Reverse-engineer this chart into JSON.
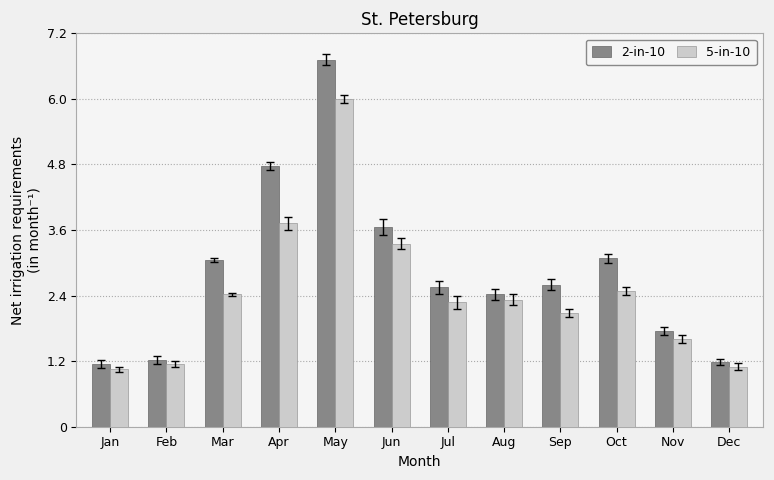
{
  "title": "St. Petersburg",
  "xlabel": "Month",
  "ylabel": "Net irrigation requirements\n(in month⁻¹)",
  "months": [
    "Jan",
    "Feb",
    "Mar",
    "Apr",
    "May",
    "Jun",
    "Jul",
    "Aug",
    "Sep",
    "Oct",
    "Nov",
    "Dec"
  ],
  "values_2in10": [
    1.15,
    1.22,
    3.05,
    4.77,
    6.72,
    3.65,
    2.55,
    2.42,
    2.6,
    3.08,
    1.75,
    1.18
  ],
  "values_5in10": [
    1.05,
    1.15,
    2.42,
    3.72,
    6.0,
    3.35,
    2.28,
    2.32,
    2.08,
    2.48,
    1.6,
    1.1
  ],
  "err_2in10": [
    0.07,
    0.08,
    0.04,
    0.07,
    0.1,
    0.15,
    0.12,
    0.1,
    0.1,
    0.08,
    0.07,
    0.06
  ],
  "err_5in10": [
    0.05,
    0.06,
    0.03,
    0.12,
    0.07,
    0.1,
    0.12,
    0.1,
    0.07,
    0.07,
    0.07,
    0.06
  ],
  "color_2in10": "#888888",
  "color_5in10": "#cccccc",
  "ylim": [
    0,
    7.2
  ],
  "yticks": [
    0,
    1.2,
    2.4,
    3.6,
    4.8,
    6.0,
    7.2
  ],
  "ytick_labels": [
    "0",
    "1.2",
    "2.4",
    "3.6",
    "4.8",
    "6.0",
    "7.2"
  ],
  "legend_labels": [
    "2-in-10",
    "5-in-10"
  ],
  "bar_width": 0.32,
  "background_color": "#f0f0f0",
  "plot_bg_color": "#f5f5f5",
  "grid_color": "#aaaaaa",
  "title_fontsize": 12,
  "label_fontsize": 10,
  "tick_fontsize": 9
}
